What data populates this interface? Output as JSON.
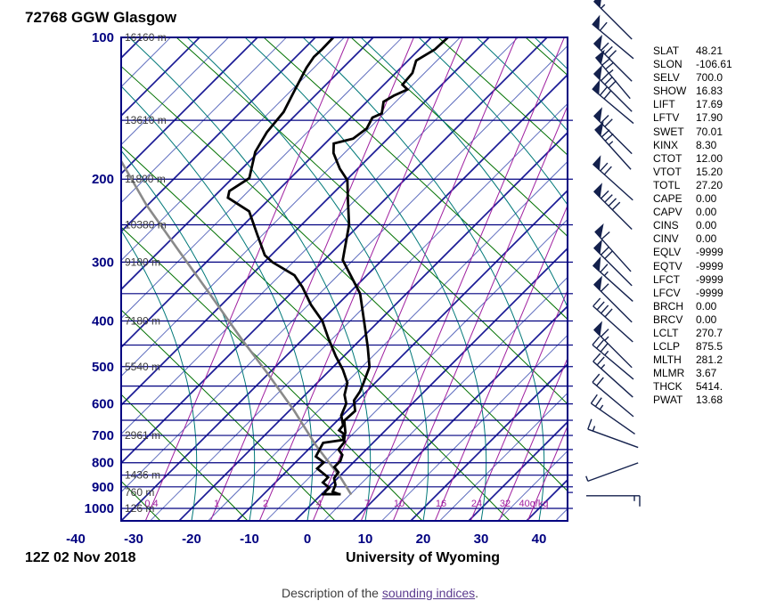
{
  "title": "72768 GGW Glasgow",
  "footer": {
    "date": "12Z 02 Nov 2018",
    "source": "University of Wyoming"
  },
  "description": {
    "prefix": "Description of the ",
    "link": "sounding indices",
    "suffix": "."
  },
  "indices": [
    {
      "name": "SLAT",
      "value": "48.21"
    },
    {
      "name": "SLON",
      "value": "-106.61"
    },
    {
      "name": "SELV",
      "value": "700.0"
    },
    {
      "name": "SHOW",
      "value": "16.83"
    },
    {
      "name": "LIFT",
      "value": "17.69"
    },
    {
      "name": "LFTV",
      "value": "17.90"
    },
    {
      "name": "SWET",
      "value": "70.01"
    },
    {
      "name": "KINX",
      "value": "8.30"
    },
    {
      "name": "CTOT",
      "value": "12.00"
    },
    {
      "name": "VTOT",
      "value": "15.20"
    },
    {
      "name": "TOTL",
      "value": "27.20"
    },
    {
      "name": "CAPE",
      "value": "0.00"
    },
    {
      "name": "CAPV",
      "value": "0.00"
    },
    {
      "name": "CINS",
      "value": "0.00"
    },
    {
      "name": "CINV",
      "value": "0.00"
    },
    {
      "name": "EQLV",
      "value": "-9999"
    },
    {
      "name": "EQTV",
      "value": "-9999"
    },
    {
      "name": "LFCT",
      "value": "-9999"
    },
    {
      "name": "LFCV",
      "value": "-9999"
    },
    {
      "name": "BRCH",
      "value": "0.00"
    },
    {
      "name": "BRCV",
      "value": "0.00"
    },
    {
      "name": "LCLT",
      "value": "270.7"
    },
    {
      "name": "LCLP",
      "value": "875.5"
    },
    {
      "name": "MLTH",
      "value": "281.2"
    },
    {
      "name": "MLMR",
      "value": "3.67"
    },
    {
      "name": "THCK",
      "value": "5414."
    },
    {
      "name": "PWAT",
      "value": "13.68"
    }
  ],
  "chart_data": {
    "type": "line",
    "subtype": "skew-t log-p sounding",
    "title": "72768 GGW Glasgow",
    "xlabel": "Temperature (C)",
    "ylabel": "Pressure (hPa)",
    "pressure_ticks": [
      100,
      200,
      300,
      400,
      500,
      600,
      700,
      800,
      900,
      1000
    ],
    "isobar_lines": [
      150,
      200,
      250,
      300,
      350,
      400,
      450,
      500,
      550,
      600,
      650,
      700,
      750,
      800,
      850,
      900,
      1000
    ],
    "temp_ticks": [
      -40,
      -30,
      -20,
      -10,
      0,
      10,
      20,
      30,
      40
    ],
    "temp_range": [
      -40,
      40
    ],
    "pressure_range": [
      100,
      1050
    ],
    "grid": true,
    "legend": "none",
    "height_labels": [
      {
        "pressure": 100,
        "label": "16160 m"
      },
      {
        "pressure": 150,
        "label": "13610 m"
      },
      {
        "pressure": 200,
        "label": "11800 m"
      },
      {
        "pressure": 250,
        "label": "10380 m"
      },
      {
        "pressure": 300,
        "label": "9180 m"
      },
      {
        "pressure": 400,
        "label": "7180 m"
      },
      {
        "pressure": 500,
        "label": "5540 m"
      },
      {
        "pressure": 700,
        "label": "2961 m"
      },
      {
        "pressure": 850,
        "label": "1436 m"
      },
      {
        "pressure": 925,
        "label": "760 m"
      },
      {
        "pressure": 1000,
        "label": "126 m"
      }
    ],
    "mixing_ratio_labels": [
      {
        "label": "0.4",
        "x": 170
      },
      {
        "label": "1",
        "x": 243
      },
      {
        "label": "2",
        "x": 298
      },
      {
        "label": "4",
        "x": 358
      },
      {
        "label": "7",
        "x": 412
      },
      {
        "label": "10",
        "x": 448
      },
      {
        "label": "16",
        "x": 495
      },
      {
        "label": "24",
        "x": 535
      },
      {
        "label": "32",
        "x": 567
      },
      {
        "label": "40g/kg",
        "x": 599
      }
    ],
    "series": [
      {
        "name": "temperature",
        "points": [
          [
            100,
            -57.1
          ],
          [
            106,
            -57.3
          ],
          [
            112,
            -58.6
          ],
          [
            119,
            -57.1
          ],
          [
            126,
            -56.8
          ],
          [
            129,
            -55.1
          ],
          [
            133,
            -56.4
          ],
          [
            137,
            -57.1
          ],
          [
            145,
            -55.4
          ],
          [
            148,
            -56.3
          ],
          [
            156,
            -55.4
          ],
          [
            164,
            -56.0
          ],
          [
            168,
            -58.5
          ],
          [
            176,
            -56.9
          ],
          [
            190,
            -53.1
          ],
          [
            201,
            -49.8
          ],
          [
            222,
            -46.2
          ],
          [
            250,
            -41.8
          ],
          [
            297,
            -36.8
          ],
          [
            350,
            -28.0
          ],
          [
            400,
            -22.6
          ],
          [
            455,
            -17.4
          ],
          [
            501,
            -13.7
          ],
          [
            541,
            -12.0
          ],
          [
            565,
            -11.1
          ],
          [
            590,
            -10.6
          ],
          [
            621,
            -8.6
          ],
          [
            651,
            -8.8
          ],
          [
            691,
            -6.5
          ],
          [
            704,
            -6.3
          ],
          [
            722,
            -5.1
          ],
          [
            750,
            -4.8
          ],
          [
            770,
            -3.2
          ],
          [
            793,
            -2.5
          ],
          [
            817,
            -2.5
          ],
          [
            838,
            -0.9
          ],
          [
            863,
            -0.6
          ],
          [
            892,
            0.8
          ],
          [
            922,
            1.5
          ],
          [
            933,
            3.0
          ]
        ]
      },
      {
        "name": "dewpoint",
        "points": [
          [
            100,
            -76.9
          ],
          [
            106,
            -76.8
          ],
          [
            110,
            -76.9
          ],
          [
            116,
            -76.3
          ],
          [
            129,
            -74.5
          ],
          [
            144,
            -72.6
          ],
          [
            159,
            -72.0
          ],
          [
            175,
            -70.6
          ],
          [
            199,
            -67.1
          ],
          [
            212,
            -68.3
          ],
          [
            219,
            -67.4
          ],
          [
            234,
            -61.4
          ],
          [
            262,
            -56.0
          ],
          [
            290,
            -51.1
          ],
          [
            300,
            -48.6
          ],
          [
            320,
            -42.5
          ],
          [
            339,
            -39.1
          ],
          [
            370,
            -34.5
          ],
          [
            400,
            -29.8
          ],
          [
            435,
            -25.8
          ],
          [
            475,
            -21.4
          ],
          [
            508,
            -17.8
          ],
          [
            541,
            -14.8
          ],
          [
            574,
            -13.2
          ],
          [
            599,
            -11.4
          ],
          [
            635,
            -10.2
          ],
          [
            666,
            -8.2
          ],
          [
            683,
            -8.0
          ],
          [
            697,
            -6.3
          ],
          [
            715,
            -5.5
          ],
          [
            726,
            -8.6
          ],
          [
            776,
            -7.5
          ],
          [
            799,
            -5.1
          ],
          [
            823,
            -5.2
          ],
          [
            859,
            -1.8
          ],
          [
            881,
            -1.8
          ],
          [
            904,
            0.2
          ],
          [
            922,
            0.2
          ],
          [
            933,
            0.6
          ]
        ]
      },
      {
        "name": "parcel",
        "points": [
          [
            100,
            -120.6
          ],
          [
            118,
            -113.7
          ],
          [
            147,
            -103.7
          ],
          [
            182,
            -92.5
          ],
          [
            227,
            -80.2
          ],
          [
            282,
            -67.1
          ],
          [
            350,
            -54.0
          ],
          [
            435,
            -40.9
          ],
          [
            517,
            -30.2
          ],
          [
            621,
            -19.1
          ],
          [
            735,
            -9.4
          ],
          [
            863,
            0.6
          ],
          [
            935,
            5.2
          ]
        ]
      }
    ],
    "wind_barbs": [
      {
        "pressure": 92,
        "dir": 315,
        "pennants": 1,
        "barbs": 0,
        "halves": 1
      },
      {
        "pressure": 102,
        "dir": 310,
        "pennants": 1,
        "barbs": 1,
        "halves": 0
      },
      {
        "pressure": 113,
        "dir": 315,
        "pennants": 1,
        "barbs": 3,
        "halves": 0
      },
      {
        "pressure": 122,
        "dir": 320,
        "pennants": 1,
        "barbs": 2,
        "halves": 1
      },
      {
        "pressure": 131,
        "dir": 315,
        "pennants": 1,
        "barbs": 3,
        "halves": 0
      },
      {
        "pressure": 140,
        "dir": 310,
        "pennants": 1,
        "barbs": 2,
        "halves": 0
      },
      {
        "pressure": 161,
        "dir": 315,
        "pennants": 1,
        "barbs": 2,
        "halves": 0
      },
      {
        "pressure": 173,
        "dir": 318,
        "pennants": 1,
        "barbs": 2,
        "halves": 1
      },
      {
        "pressure": 203,
        "dir": 312,
        "pennants": 1,
        "barbs": 2,
        "halves": 0
      },
      {
        "pressure": 233,
        "dir": 315,
        "pennants": 1,
        "barbs": 4,
        "halves": 0
      },
      {
        "pressure": 285,
        "dir": 318,
        "pennants": 1,
        "barbs": 1,
        "halves": 0
      },
      {
        "pressure": 307,
        "dir": 315,
        "pennants": 1,
        "barbs": 2,
        "halves": 0
      },
      {
        "pressure": 333,
        "dir": 312,
        "pennants": 1,
        "barbs": 1,
        "halves": 1
      },
      {
        "pressure": 367,
        "dir": 315,
        "pennants": 1,
        "barbs": 1,
        "halves": 0
      },
      {
        "pressure": 406,
        "dir": 312,
        "pennants": 0,
        "barbs": 4,
        "halves": 0
      },
      {
        "pressure": 458,
        "dir": 315,
        "pennants": 1,
        "barbs": 1,
        "halves": 1
      },
      {
        "pressure": 489,
        "dir": 310,
        "pennants": 0,
        "barbs": 3,
        "halves": 1
      },
      {
        "pressure": 532,
        "dir": 312,
        "pennants": 0,
        "barbs": 2,
        "halves": 1
      },
      {
        "pressure": 587,
        "dir": 310,
        "pennants": 0,
        "barbs": 2,
        "halves": 0
      },
      {
        "pressure": 645,
        "dir": 305,
        "pennants": 0,
        "barbs": 2,
        "halves": 1
      },
      {
        "pressure": 710,
        "dir": 290,
        "pennants": 0,
        "barbs": 1,
        "halves": 1
      },
      {
        "pressure": 837,
        "dir": 250,
        "pennants": 0,
        "barbs": 0,
        "halves": 1
      },
      {
        "pressure": 940,
        "dir": 90,
        "pennants": 0,
        "barbs": 1,
        "halves": 1
      }
    ],
    "colors": {
      "isobar": "#000080",
      "isotherm_minor": "#4455b4",
      "isotherm_major": "#1c1c96",
      "dry_adiabat": "#007000",
      "moist_adiabat": "#007878",
      "mixing_ratio": "#a020a0",
      "temperature": "#000000",
      "dewpoint": "#000000",
      "parcel": "#8a8a8a",
      "axis_label": "#000080",
      "height_label": "#3c3c3c",
      "wind_barb": "#14214d"
    }
  }
}
